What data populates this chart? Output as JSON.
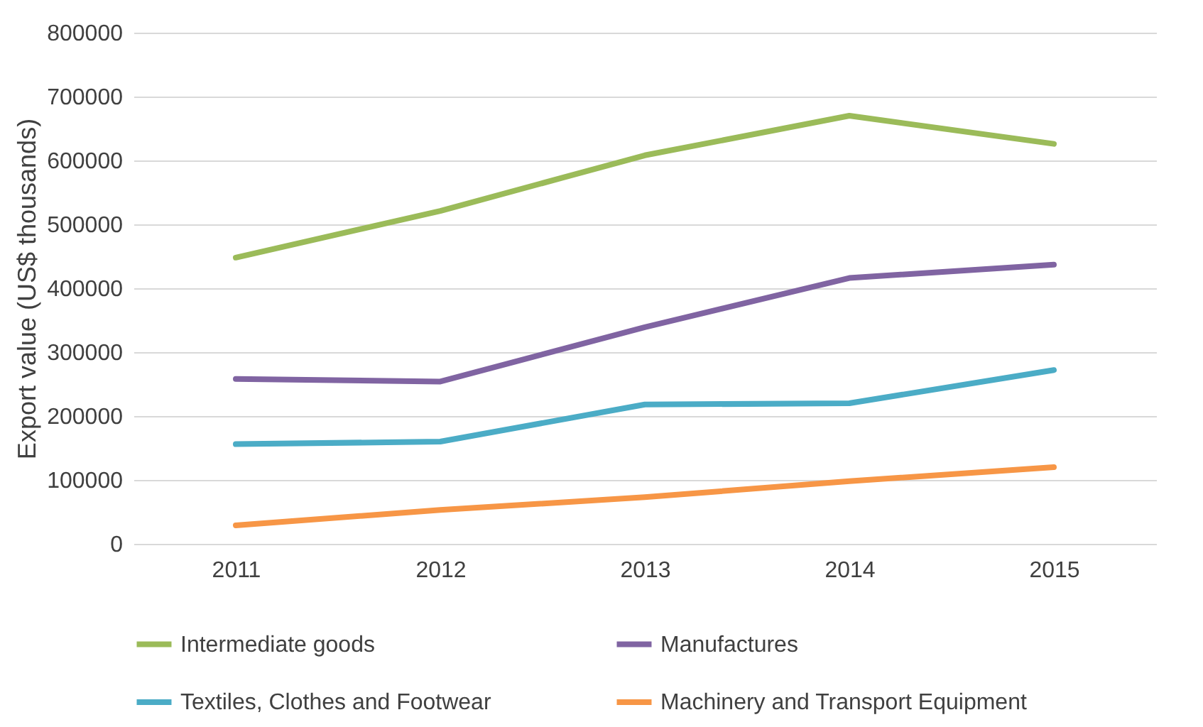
{
  "chart_data": {
    "type": "line",
    "ylabel": "Export value (US$ thousands)",
    "categories": [
      "2011",
      "2012",
      "2013",
      "2014",
      "2015"
    ],
    "series": [
      {
        "name": "Intermediate goods",
        "color": "#9bbb59",
        "values": [
          448000,
          521000,
          608000,
          670000,
          626000
        ]
      },
      {
        "name": "Manufactures",
        "color": "#8064a2",
        "values": [
          258000,
          254000,
          339000,
          416000,
          437000
        ]
      },
      {
        "name": "Textiles, Clothes and Footwear",
        "color": "#4bacc6",
        "values": [
          156000,
          160000,
          218000,
          220000,
          272000
        ]
      },
      {
        "name": "Machinery and Transport Equipment",
        "color": "#f79646",
        "values": [
          29000,
          53000,
          73000,
          98000,
          120000
        ]
      }
    ],
    "ylim": [
      0,
      800000
    ],
    "yticks": [
      0,
      100000,
      200000,
      300000,
      400000,
      500000,
      600000,
      700000,
      800000
    ],
    "grid": "y",
    "legend": "bottom",
    "marker": "none",
    "line_style": "solid"
  }
}
